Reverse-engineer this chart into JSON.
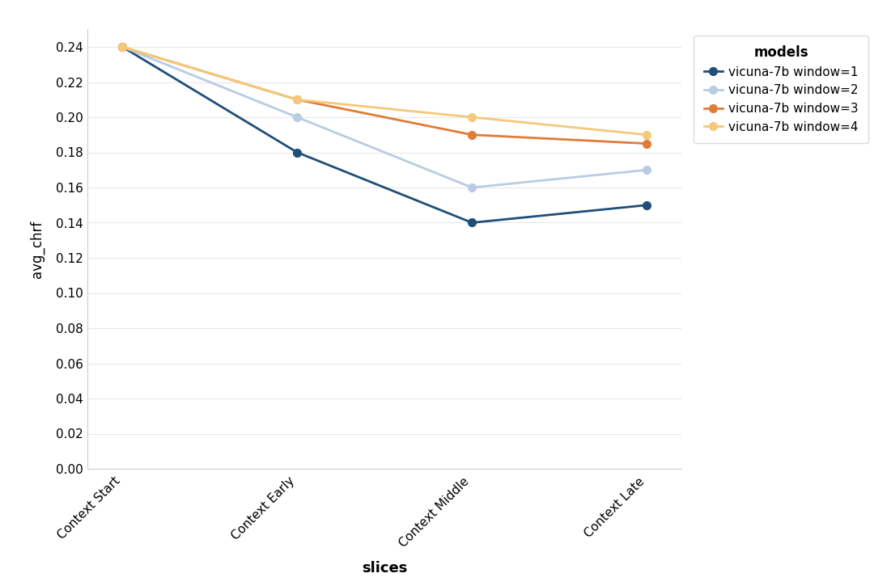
{
  "title": "",
  "xlabel": "slices",
  "ylabel": "avg_chrf",
  "xlabels": [
    "Context Start",
    "Context Early",
    "Context Middle",
    "Context Late"
  ],
  "series": [
    {
      "label": "vicuna-7b window=1",
      "values": [
        0.24,
        0.18,
        0.14,
        0.15
      ],
      "color": "#1f4e79",
      "marker": "o",
      "linewidth": 2.0
    },
    {
      "label": "vicuna-7b window=2",
      "values": [
        0.24,
        0.2,
        0.16,
        0.17
      ],
      "color": "#b8cce4",
      "marker": "o",
      "linewidth": 2.0
    },
    {
      "label": "vicuna-7b window=3",
      "values": [
        0.24,
        0.21,
        0.19,
        0.185
      ],
      "color": "#e07b39",
      "marker": "o",
      "linewidth": 2.0
    },
    {
      "label": "vicuna-7b window=4",
      "values": [
        0.24,
        0.21,
        0.2,
        0.19
      ],
      "color": "#f5c97a",
      "marker": "o",
      "linewidth": 2.0
    }
  ],
  "legend_title": "models",
  "ylim": [
    0.0,
    0.25
  ],
  "yticks": [
    0.0,
    0.02,
    0.04,
    0.06,
    0.08,
    0.1,
    0.12,
    0.14,
    0.16,
    0.18,
    0.2,
    0.22,
    0.24
  ],
  "background_color": "#ffffff",
  "grid_color": "#e8e8e8",
  "xlabel_fontsize": 13,
  "ylabel_fontsize": 12,
  "tick_fontsize": 11,
  "legend_fontsize": 11,
  "legend_title_fontsize": 12
}
